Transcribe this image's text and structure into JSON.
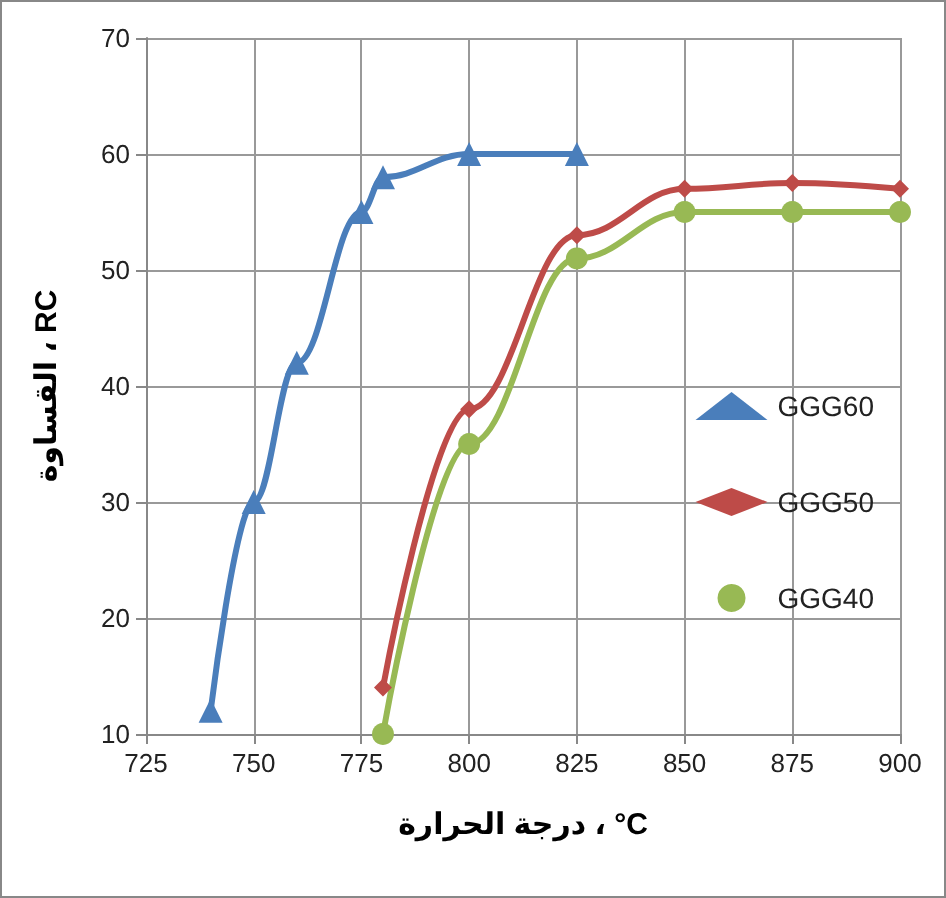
{
  "chart_data": {
    "type": "line",
    "xlabel": "درجة الحرارة ، °C",
    "ylabel": "القساوة ، RC",
    "xlim": [
      725,
      900
    ],
    "xticks": [
      725,
      750,
      775,
      800,
      825,
      850,
      875,
      900
    ],
    "ylim": [
      10,
      70
    ],
    "yticks": [
      10,
      20,
      30,
      40,
      50,
      60,
      70
    ],
    "grid": true,
    "legend": "right",
    "line_style": "solid",
    "series": [
      {
        "name": "GGG60",
        "color": "#4a7ebb",
        "marker": "triangle",
        "x": [
          740,
          750,
          760,
          775,
          780,
          800,
          825
        ],
        "values": [
          12,
          30,
          42,
          55,
          58,
          60,
          60
        ]
      },
      {
        "name": "GGG50",
        "color": "#be4b48",
        "marker": "diamond",
        "x": [
          780,
          800,
          825,
          850,
          875,
          900
        ],
        "values": [
          14,
          38,
          53,
          57,
          57.5,
          57
        ]
      },
      {
        "name": "GGG40",
        "color": "#98b954",
        "marker": "circle",
        "x": [
          780,
          800,
          825,
          850,
          875,
          900
        ],
        "values": [
          10,
          35,
          51,
          55,
          55,
          55
        ]
      }
    ]
  }
}
